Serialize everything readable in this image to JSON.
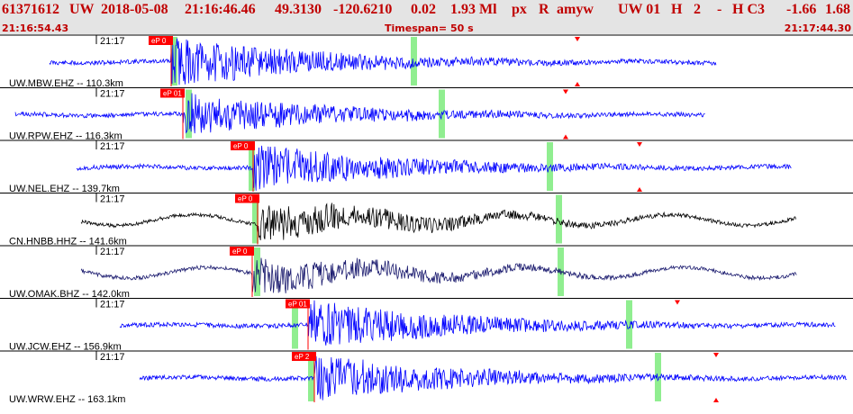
{
  "header": {
    "event_id": "61371612",
    "network": "UW",
    "date": "2018-05-08",
    "time": "21:16:46.46",
    "lat": "49.3130",
    "lon": "-120.6210",
    "depth": "0.02",
    "magnitude": "1.93 Ml",
    "etype": "px",
    "review": "R",
    "author": "amyw",
    "auth_net": "UW 01",
    "gtype": "H",
    "version": "2",
    "flag": "-",
    "mtype": "H C3",
    "val1": "-1.66",
    "val2": "1.68",
    "start_time": "21:16:54.43",
    "timespan_label": "Timespan=",
    "timespan_value": "50 s",
    "end_time": "21:17:44.30"
  },
  "colors": {
    "header_bg": "#e4e4e4",
    "header_text": "#c00000",
    "trace_blue": "#0000ff",
    "trace_black": "#000000",
    "trace_navy": "#1a1a6e",
    "pick": "#ff0000",
    "window_green": "#90ee90"
  },
  "channels": [
    {
      "id": "MBW",
      "label": "UW.MBW.EHZ -- 110.3km",
      "minute_label": "21:17",
      "pick_label": "eP 0",
      "color_key": "trace_blue",
      "seed": 11,
      "amp": 26,
      "top_arrow": true,
      "bottom_arrow": true
    },
    {
      "id": "RPW",
      "label": "UW.RPW.EHZ -- 116.3km",
      "minute_label": "21:17",
      "pick_label": "eP 01",
      "color_key": "trace_blue",
      "seed": 23,
      "amp": 22,
      "top_arrow": true,
      "bottom_arrow": true
    },
    {
      "id": "NEL",
      "label": "UW.NEL.EHZ -- 139.7km",
      "minute_label": "21:17",
      "pick_label": "eP 0",
      "color_key": "trace_blue",
      "seed": 37,
      "amp": 24,
      "top_arrow": true,
      "bottom_arrow": true
    },
    {
      "id": "HNBB",
      "label": "CN.HNBB.HHZ -- 141.6km",
      "minute_label": "21:17",
      "pick_label": "eP 0",
      "color_key": "trace_black",
      "seed": 41,
      "amp": 26,
      "top_arrow": false,
      "bottom_arrow": false
    },
    {
      "id": "OMAK",
      "label": "UW.OMAK.BHZ -- 142.0km",
      "minute_label": "21:17",
      "pick_label": "eP 0",
      "color_key": "trace_navy",
      "seed": 53,
      "amp": 22,
      "top_arrow": false,
      "bottom_arrow": false
    },
    {
      "id": "JCW",
      "label": "UW.JCW.EHZ -- 156.9km",
      "minute_label": "21:17",
      "pick_label": "eP 01",
      "color_key": "trace_blue",
      "seed": 67,
      "amp": 26,
      "top_arrow": true,
      "bottom_arrow": false
    },
    {
      "id": "WRW",
      "label": "UW.WRW.EHZ -- 163.1km",
      "minute_label": "21:17",
      "pick_label": "eP 2",
      "color_key": "trace_blue",
      "seed": 79,
      "amp": 24,
      "top_arrow": true,
      "bottom_arrow": true
    }
  ]
}
